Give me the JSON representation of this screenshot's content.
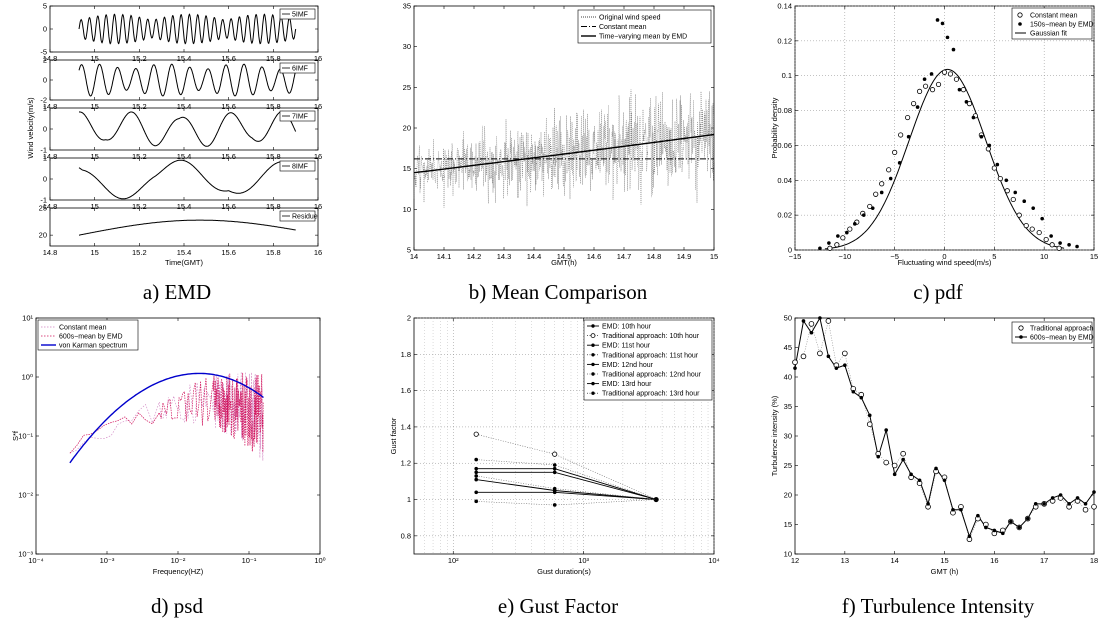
{
  "figure": {
    "captions": [
      "a) EMD",
      "b) Mean Comparison",
      "c) pdf",
      "d) psd",
      "e) Gust Factor",
      "f) Turbulence Intensity"
    ]
  },
  "chart_data": [
    {
      "id": "a",
      "type": "line",
      "caption": "a) EMD",
      "xlabel": "Time(GMT)",
      "ylabel": "Wind velocity(m/s)",
      "xlim": [
        14.8,
        16
      ],
      "xticks": [
        "14.8",
        "15",
        "15.2",
        "15.4",
        "15.6",
        "15.8",
        "16"
      ],
      "subplots": [
        {
          "name": "5IMF",
          "ylim": [
            -5,
            5
          ],
          "yticks": [
            "-5",
            "0",
            "5"
          ],
          "x_start": 14.93,
          "x_end": 15.9,
          "cycles": 26,
          "amplitude": 3.2
        },
        {
          "name": "6IMF",
          "ylim": [
            -2,
            2
          ],
          "yticks": [
            "-2",
            "0",
            "2"
          ],
          "x_start": 14.93,
          "x_end": 15.9,
          "cycles": 12,
          "amplitude": 1.6
        },
        {
          "name": "7IMF",
          "ylim": [
            -1,
            1
          ],
          "yticks": [
            "-1",
            "0",
            "1"
          ],
          "x_start": 14.93,
          "x_end": 15.9,
          "cycles": 4.3,
          "amplitude": 0.85
        },
        {
          "name": "8IMF",
          "ylim": [
            -1,
            1
          ],
          "yticks": [
            "-1",
            "0",
            "1"
          ],
          "x_start": 14.93,
          "x_end": 15.9,
          "cycles": 2,
          "amplitude": 0.95
        },
        {
          "name": "Residue",
          "ylim": [
            18,
            25
          ],
          "yticks": [
            "20",
            "25"
          ],
          "x_start": 14.93,
          "x_end": 15.9,
          "residue_start": 20.0,
          "residue_peak": 22.6,
          "residue_end": 21.0
        }
      ]
    },
    {
      "id": "b",
      "type": "line",
      "caption": "b) Mean Comparison",
      "xlabel": "GMT(h)",
      "ylabel": "",
      "xlim": [
        14,
        15
      ],
      "ylim": [
        5,
        35
      ],
      "xticks": [
        "14",
        "14.1",
        "14.2",
        "14.3",
        "14.4",
        "14.5",
        "14.6",
        "14.7",
        "14.8",
        "14.9",
        "15"
      ],
      "yticks": [
        "5",
        "10",
        "15",
        "20",
        "25",
        "30",
        "35"
      ],
      "legend": [
        "Original wind speed",
        "Constant mean",
        "Time−varying mean by EMD"
      ],
      "constant_mean": [
        16.2,
        16.2
      ],
      "emd_mean_x": [
        14.0,
        14.5,
        15.0
      ],
      "emd_mean_y": [
        14.5,
        16.8,
        19.2
      ]
    },
    {
      "id": "c",
      "type": "scatter",
      "caption": "c) pdf",
      "xlabel": "Fluctuating wind speed(m/s)",
      "ylabel": "Probability density",
      "xlim": [
        -15,
        15
      ],
      "ylim": [
        0,
        0.14
      ],
      "xticks": [
        "−15",
        "−10",
        "−5",
        "0",
        "5",
        "10",
        "15"
      ],
      "yticks": [
        "0",
        "0.02",
        "0.04",
        "0.06",
        "0.08",
        "0.1",
        "0.12",
        "0.14"
      ],
      "legend": [
        "Constant mean",
        "150s−mean by EMD",
        "Gaussian fit"
      ],
      "gaussian": {
        "mean": 0.3,
        "std": 3.85
      },
      "constant_mean_x": [
        -11.5,
        -10.8,
        -10.2,
        -9.5,
        -8.8,
        -8.2,
        -7.5,
        -6.9,
        -6.3,
        -5.6,
        -5.0,
        -4.4,
        -3.7,
        -3.1,
        -2.5,
        -1.9,
        -1.2,
        -0.6,
        0.0,
        0.6,
        1.2,
        1.9,
        2.5,
        3.1,
        3.7,
        4.4,
        5.0,
        5.6,
        6.3,
        6.9,
        7.5,
        8.2,
        8.8,
        9.5,
        10.2,
        10.8,
        11.5
      ],
      "constant_mean_y": [
        0.001,
        0.003,
        0.007,
        0.012,
        0.016,
        0.021,
        0.025,
        0.032,
        0.038,
        0.046,
        0.056,
        0.066,
        0.076,
        0.084,
        0.091,
        0.094,
        0.092,
        0.095,
        0.102,
        0.101,
        0.098,
        0.092,
        0.084,
        0.077,
        0.066,
        0.058,
        0.047,
        0.041,
        0.034,
        0.029,
        0.02,
        0.014,
        0.012,
        0.01,
        0.006,
        0.003,
        0.001
      ],
      "emd_x": [
        -12.5,
        -11.6,
        -10.7,
        -9.8,
        -9.0,
        -8.1,
        -7.2,
        -6.3,
        -5.4,
        -4.5,
        -3.6,
        -2.7,
        -2.0,
        -1.3,
        -0.7,
        -0.2,
        0.3,
        0.9,
        1.5,
        2.2,
        2.9,
        3.7,
        4.5,
        5.3,
        6.2,
        7.1,
        8.0,
        8.9,
        9.8,
        10.7,
        11.6,
        12.5,
        13.3
      ],
      "emd_y": [
        0.001,
        0.004,
        0.008,
        0.01,
        0.015,
        0.02,
        0.024,
        0.033,
        0.041,
        0.05,
        0.065,
        0.082,
        0.098,
        0.101,
        0.132,
        0.13,
        0.122,
        0.115,
        0.092,
        0.085,
        0.076,
        0.065,
        0.06,
        0.049,
        0.04,
        0.033,
        0.028,
        0.024,
        0.018,
        0.008,
        0.004,
        0.003,
        0.002
      ]
    },
    {
      "id": "d",
      "type": "line",
      "caption": "d) psd",
      "xlabel": "Frequency(HZ)",
      "ylabel": "S*f",
      "xscale": "log",
      "yscale": "log",
      "xlim": [
        0.0001,
        1
      ],
      "ylim": [
        0.001,
        10
      ],
      "xticks": [
        "10⁻⁴",
        "10⁻³",
        "10⁻²",
        "10⁻¹",
        "10⁰"
      ],
      "yticks": [
        "10⁻³",
        "10⁻²",
        "10⁻¹",
        "10⁰",
        "10¹"
      ],
      "legend": [
        "Constant mean",
        "600s−mean by EMD",
        "von Karman spectrum"
      ],
      "colors": {
        "constant_mean": "#d080c0",
        "emd": "#d0105a",
        "von_karman": "#0000cc"
      },
      "von_karman": {
        "f_low": 0.0003,
        "f_high": 0.16,
        "peak_f": 0.02,
        "peak_value": 1.15,
        "start_value": 0.035,
        "end_value": 0.45
      }
    },
    {
      "id": "e",
      "type": "line",
      "caption": "e) Gust Factor",
      "xlabel": "Gust duration(s)",
      "ylabel": "Gust factor",
      "xscale": "log",
      "xlim": [
        50,
        10000
      ],
      "ylim": [
        0.7,
        2
      ],
      "xticks": [
        "10²",
        "10³",
        "10⁴"
      ],
      "yticks": [
        "0.8",
        "1",
        "1.2",
        "1.4",
        "1.6",
        "1.8",
        "2"
      ],
      "x": [
        150,
        600,
        3600
      ],
      "series": [
        {
          "name": "EMD: 10th hour",
          "hour": "10",
          "approach": "EMD",
          "values": [
            1.04,
            1.04,
            1.0
          ]
        },
        {
          "name": "Traditional approach: 10th hour",
          "hour": "10",
          "approach": "Traditional approach",
          "values": [
            1.36,
            1.25,
            1.0
          ]
        },
        {
          "name": "EMD: 11st hour",
          "hour": "11",
          "approach": "EMD",
          "values": [
            1.15,
            1.15,
            1.0
          ]
        },
        {
          "name": "Traditional approach: 11st hour",
          "hour": "11",
          "approach": "Traditional approach",
          "values": [
            1.22,
            1.19,
            1.0
          ]
        },
        {
          "name": "EMD: 12nd hour",
          "hour": "12",
          "approach": "EMD",
          "values": [
            1.11,
            1.05,
            1.0
          ]
        },
        {
          "name": "Traditional approach: 12nd hour",
          "hour": "12",
          "approach": "Traditional approach",
          "values": [
            1.13,
            1.06,
            1.0
          ]
        },
        {
          "name": "EMD: 13rd hour",
          "hour": "13",
          "approach": "EMD",
          "values": [
            1.17,
            1.17,
            1.0
          ]
        },
        {
          "name": "Traditional approach: 13rd hour",
          "hour": "13",
          "approach": "Traditional approach",
          "values": [
            0.99,
            0.97,
            1.0
          ]
        }
      ]
    },
    {
      "id": "f",
      "type": "line",
      "caption": "f) Turbulence Intensity",
      "xlabel": "GMT (h)",
      "ylabel": "Turbulence intensity (%)",
      "xlim": [
        12,
        18
      ],
      "ylim": [
        10,
        50
      ],
      "xticks": [
        "12",
        "13",
        "14",
        "15",
        "16",
        "17",
        "18"
      ],
      "yticks": [
        "10",
        "15",
        "20",
        "25",
        "30",
        "35",
        "40",
        "45",
        "50"
      ],
      "legend": [
        "Traditional approach",
        "600s−mean by EMD"
      ],
      "x": [
        12.0,
        12.17,
        12.33,
        12.5,
        12.67,
        12.83,
        13.0,
        13.17,
        13.33,
        13.5,
        13.67,
        13.83,
        14.0,
        14.17,
        14.33,
        14.5,
        14.67,
        14.83,
        15.0,
        15.17,
        15.33,
        15.5,
        15.67,
        15.83,
        16.0,
        16.17,
        16.33,
        16.5,
        16.67,
        16.83,
        17.0,
        17.17,
        17.33,
        17.5,
        17.67,
        17.83,
        18.0
      ],
      "traditional": [
        42.5,
        43.5,
        49.0,
        44.0,
        49.5,
        42.0,
        44.0,
        38.0,
        37.0,
        32.0,
        27.0,
        25.5,
        25.0,
        27.0,
        23.0,
        22.0,
        18.0,
        24.0,
        23.0,
        17.0,
        18.0,
        12.5,
        16.0,
        15.0,
        13.5,
        14.0,
        15.5,
        14.5,
        16.0,
        18.0,
        18.5,
        19.0,
        19.5,
        18.0,
        19.0,
        17.5,
        18.0
      ],
      "emd": [
        41.5,
        49.5,
        47.5,
        50.0,
        43.5,
        41.5,
        42.0,
        37.5,
        36.5,
        33.5,
        26.5,
        31.0,
        23.5,
        26.0,
        23.5,
        22.5,
        18.5,
        24.5,
        22.5,
        17.5,
        17.5,
        13.0,
        16.5,
        14.5,
        14.0,
        13.5,
        15.5,
        14.5,
        16.0,
        18.5,
        18.5,
        19.5,
        20.0,
        18.5,
        19.5,
        18.5,
        20.5
      ]
    }
  ]
}
